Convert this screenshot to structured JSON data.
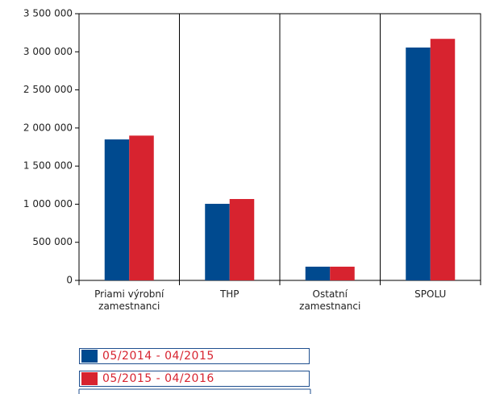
{
  "chart_data": {
    "type": "bar",
    "categories": [
      "Priami výrobní zamestnanci",
      "THP",
      "Ostatní zamestnanci",
      "SPOLU"
    ],
    "series": [
      {
        "name": "05/2014 - 04/2015",
        "color": "#004a8f",
        "values": [
          1850000,
          1005000,
          180000,
          3056000
        ]
      },
      {
        "name": "05/2015 - 04/2016",
        "color": "#d7232f",
        "values": [
          1900000,
          1068000,
          180000,
          3170000
        ]
      }
    ],
    "ylim": [
      0,
      3500000
    ],
    "yticks": [
      0,
      {
        "value": 500000,
        "label": "500 000"
      },
      {
        "value": 1000000,
        "label": "1 000 000"
      },
      {
        "value": 1500000,
        "label": "1 500 000"
      },
      {
        "value": 2000000,
        "label": "2 000 000"
      },
      {
        "value": 2500000,
        "label": "2 500 000"
      },
      {
        "value": 3000000,
        "label": "3 000 000"
      },
      {
        "value": 3500000,
        "label": "3 500 000"
      }
    ]
  }
}
